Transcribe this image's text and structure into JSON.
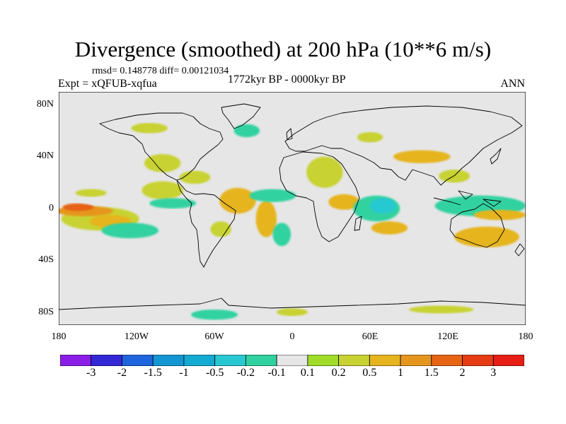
{
  "title": "Divergence (smoothed) at 200 hPa (10**6 m/s)",
  "stats": "rmsd= 0.148778 diff= 0.00121034",
  "experiment": "Expt = xQFUB-xqfua",
  "period": "1772kyr BP - 0000kyr BP",
  "season": "ANN",
  "lat_labels": [
    "80N",
    "40N",
    "0",
    "40S",
    "80S"
  ],
  "lon_labels": [
    "180",
    "120W",
    "60W",
    "0",
    "60E",
    "120E",
    "180"
  ],
  "colorbar": {
    "labels": [
      "-3",
      "-2",
      "-1.5",
      "-1",
      "-0.5",
      "-0.2",
      "-0.1",
      "0.1",
      "0.2",
      "0.5",
      "1",
      "1.5",
      "2",
      "3"
    ],
    "colors": [
      "#8a1ee6",
      "#3228d6",
      "#1e64dc",
      "#1496d2",
      "#14aad2",
      "#28c8d2",
      "#32d2a0",
      "#e6e6e6",
      "#a0dc28",
      "#c8d232",
      "#e6b41e",
      "#e6961e",
      "#e66414",
      "#e63c14",
      "#e61e14"
    ]
  },
  "chart_data": {
    "type": "contour-map",
    "title": "Divergence (smoothed) at 200 hPa (10**6 m/s)",
    "units": "10**6 m/s",
    "lon_range": [
      -180,
      180
    ],
    "lat_range": [
      -90,
      90
    ],
    "levels": [
      -3,
      -2,
      -1.5,
      -1,
      -0.5,
      -0.2,
      -0.1,
      0.1,
      0.2,
      0.5,
      1,
      1.5,
      2,
      3
    ],
    "rmsd": 0.148778,
    "diff": 0.00121034,
    "blobs": [
      {
        "lon": -148,
        "lat": -8,
        "rlon": 30,
        "rlat": 9,
        "value": 0.2
      },
      {
        "lon": -140,
        "lat": -10,
        "rlon": 16,
        "rlat": 5,
        "value": 0.5
      },
      {
        "lon": -160,
        "lat": -2,
        "rlon": 22,
        "rlat": 4,
        "value": 1.0
      },
      {
        "lon": -165,
        "lat": 1,
        "rlon": 12,
        "rlat": 3,
        "value": 1.5
      },
      {
        "lon": -125,
        "lat": -17,
        "rlon": 22,
        "rlat": 6,
        "value": -0.2
      },
      {
        "lon": -145,
        "lat": 7,
        "rlon": 22,
        "rlat": 4,
        "value": -0.1
      },
      {
        "lon": -155,
        "lat": 12,
        "rlon": 12,
        "rlat": 3,
        "value": 0.2
      },
      {
        "lon": -100,
        "lat": 14,
        "rlon": 16,
        "rlat": 7,
        "value": 0.2
      },
      {
        "lon": -92,
        "lat": 4,
        "rlon": 18,
        "rlat": 4,
        "value": -0.2
      },
      {
        "lon": -75,
        "lat": 24,
        "rlon": 12,
        "rlat": 5,
        "value": 0.2
      },
      {
        "lon": -100,
        "lat": 35,
        "rlon": 14,
        "rlat": 7,
        "value": 0.2
      },
      {
        "lon": -110,
        "lat": 62,
        "rlon": 14,
        "rlat": 4,
        "value": 0.2
      },
      {
        "lon": -35,
        "lat": 60,
        "rlon": 10,
        "rlat": 5,
        "value": -0.2
      },
      {
        "lon": -42,
        "lat": 6,
        "rlon": 14,
        "rlat": 10,
        "value": 0.5
      },
      {
        "lon": -55,
        "lat": -16,
        "rlon": 8,
        "rlat": 6,
        "value": 0.2
      },
      {
        "lon": -20,
        "lat": -8,
        "rlon": 8,
        "rlat": 14,
        "value": 0.5
      },
      {
        "lon": -8,
        "lat": -20,
        "rlon": 7,
        "rlat": 9,
        "value": -0.2
      },
      {
        "lon": -15,
        "lat": 10,
        "rlon": 18,
        "rlat": 5,
        "value": -0.2
      },
      {
        "lon": 25,
        "lat": 28,
        "rlon": 14,
        "rlat": 12,
        "value": 0.2
      },
      {
        "lon": 40,
        "lat": 5,
        "rlon": 12,
        "rlat": 6,
        "value": 0.5
      },
      {
        "lon": 65,
        "lat": 0,
        "rlon": 18,
        "rlat": 10,
        "value": -0.2
      },
      {
        "lon": 70,
        "lat": 2,
        "rlon": 10,
        "rlat": 6,
        "value": -0.5
      },
      {
        "lon": 75,
        "lat": -15,
        "rlon": 14,
        "rlat": 5,
        "value": 0.5
      },
      {
        "lon": 100,
        "lat": 40,
        "rlon": 22,
        "rlat": 5,
        "value": 0.5
      },
      {
        "lon": 145,
        "lat": 2,
        "rlon": 35,
        "rlat": 8,
        "value": -0.2
      },
      {
        "lon": 160,
        "lat": -5,
        "rlon": 20,
        "rlat": 4,
        "value": 0.5
      },
      {
        "lon": 150,
        "lat": -22,
        "rlon": 25,
        "rlat": 8,
        "value": 0.5
      },
      {
        "lon": 125,
        "lat": 25,
        "rlon": 12,
        "rlat": 5,
        "value": 0.2
      },
      {
        "lon": 60,
        "lat": 55,
        "rlon": 10,
        "rlat": 4,
        "value": 0.2
      },
      {
        "lon": -60,
        "lat": -82,
        "rlon": 18,
        "rlat": 4,
        "value": -0.2
      },
      {
        "lon": 0,
        "lat": -80,
        "rlon": 12,
        "rlat": 3,
        "value": 0.2
      },
      {
        "lon": 115,
        "lat": -78,
        "rlon": 25,
        "rlat": 3,
        "value": 0.2
      }
    ]
  }
}
